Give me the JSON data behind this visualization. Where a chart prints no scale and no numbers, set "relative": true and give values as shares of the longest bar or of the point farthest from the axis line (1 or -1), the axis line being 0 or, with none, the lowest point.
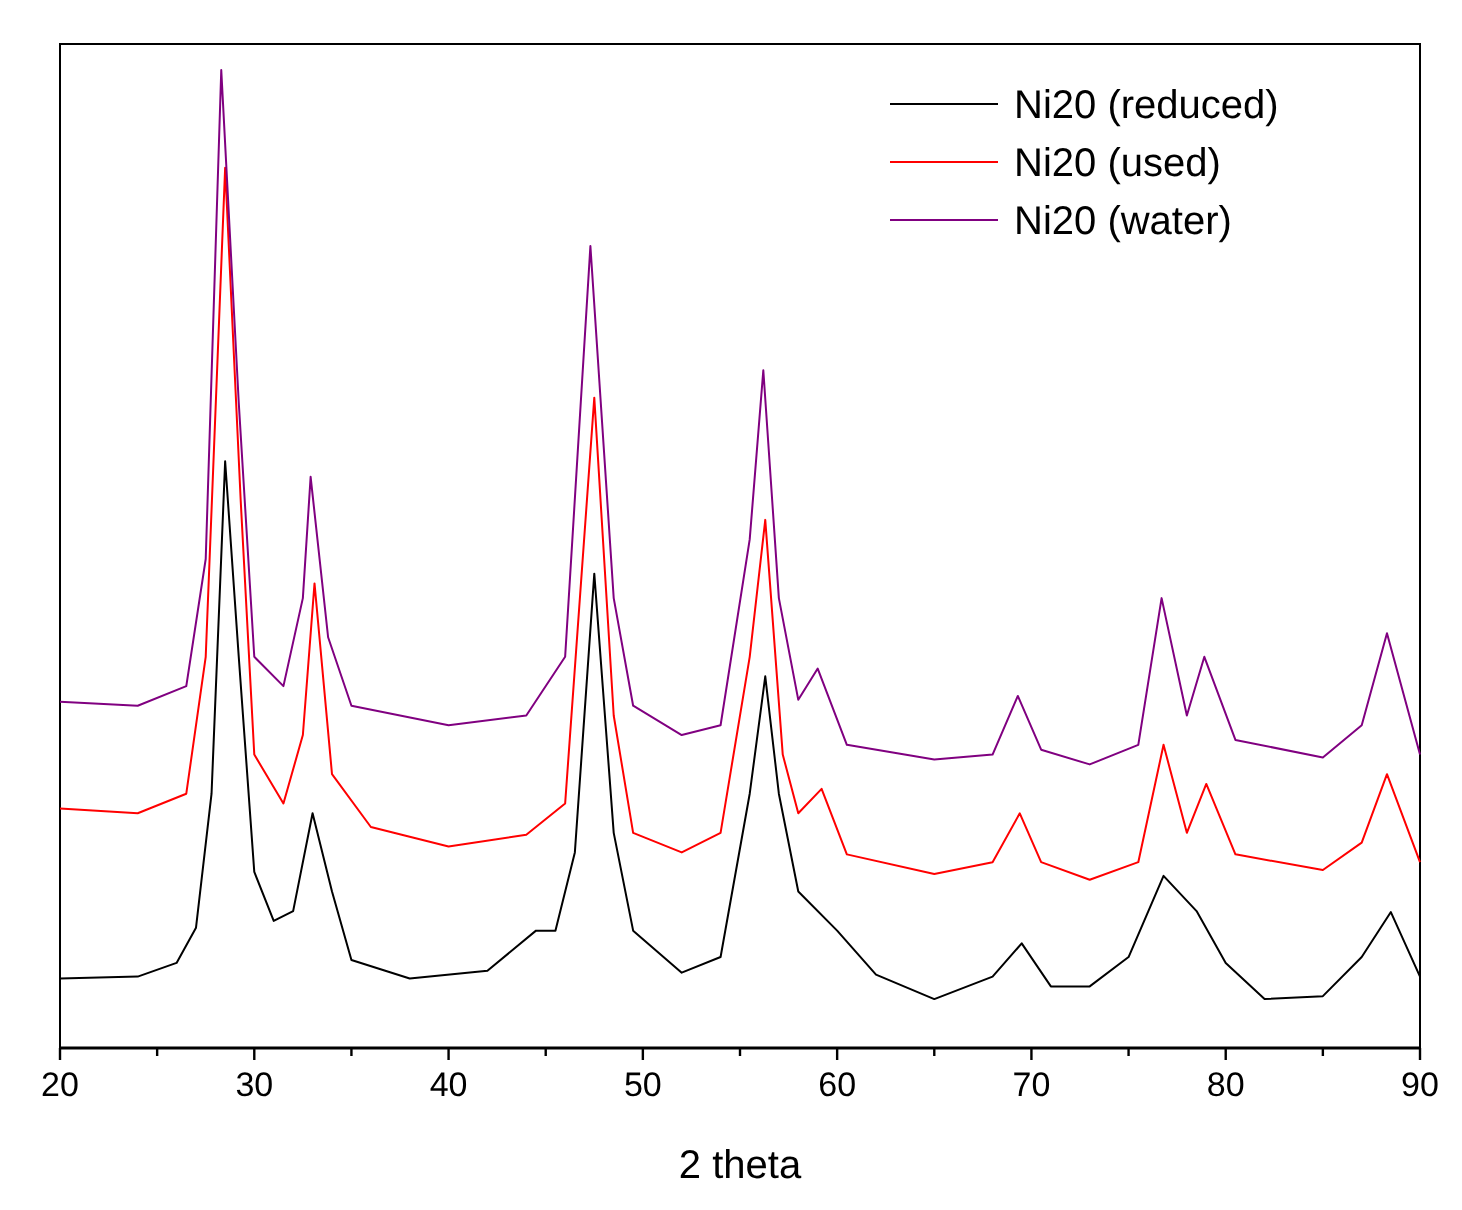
{
  "chart_data": {
    "type": "line",
    "xlabel": "2 theta",
    "relative": true,
    "xlim": [
      20,
      90
    ],
    "xticks": [
      20,
      {
        "value": 25,
        "label": null
      },
      30,
      {
        "value": 35,
        "label": null
      },
      40,
      {
        "value": 45,
        "label": null
      },
      50,
      {
        "value": 55,
        "label": null
      },
      60,
      {
        "value": 65,
        "label": null
      },
      70,
      {
        "value": 75,
        "label": null
      },
      80,
      {
        "value": 85,
        "label": null
      },
      90
    ],
    "legend": "top right",
    "grid": false,
    "line_style": "solid",
    "series": [
      {
        "name": "Ni20 (reduced)",
        "color": "#000000",
        "x": [
          20,
          24,
          26,
          27,
          27.8,
          28.5,
          29.2,
          30,
          31,
          32,
          33,
          34,
          35,
          38,
          42,
          44.5,
          45.5,
          46.5,
          47.5,
          48.5,
          49.5,
          52,
          54,
          55.5,
          56.3,
          57,
          58,
          60,
          62,
          65,
          68,
          69.5,
          71,
          73,
          75,
          76.8,
          78.5,
          80,
          82,
          85,
          87,
          88.5,
          90
        ],
        "values": [
          0.071,
          0.073,
          0.087,
          0.123,
          0.26,
          0.6,
          0.4,
          0.18,
          0.13,
          0.14,
          0.24,
          0.16,
          0.09,
          0.071,
          0.079,
          0.12,
          0.12,
          0.2,
          0.485,
          0.22,
          0.12,
          0.077,
          0.093,
          0.26,
          0.38,
          0.26,
          0.16,
          0.12,
          0.075,
          0.05,
          0.073,
          0.107,
          0.063,
          0.063,
          0.093,
          0.176,
          0.14,
          0.087,
          0.05,
          0.053,
          0.093,
          0.139,
          0.073
        ]
      },
      {
        "name": "Ni20 (used)",
        "color": "#ff0000",
        "x": [
          20,
          24,
          26.5,
          27.5,
          28.5,
          29.3,
          30,
          31.5,
          32.5,
          33.1,
          34,
          36,
          40,
          44,
          46,
          47.5,
          48.5,
          49.5,
          52,
          54,
          55.5,
          56.3,
          57.2,
          58,
          59.2,
          60.5,
          65,
          68,
          69.4,
          70.5,
          73,
          75.5,
          76.8,
          78,
          79,
          80.5,
          85,
          87,
          88.3,
          90
        ],
        "values": [
          0.245,
          0.24,
          0.26,
          0.4,
          0.9,
          0.56,
          0.3,
          0.25,
          0.32,
          0.475,
          0.28,
          0.226,
          0.206,
          0.218,
          0.25,
          0.665,
          0.34,
          0.22,
          0.2,
          0.22,
          0.4,
          0.54,
          0.3,
          0.24,
          0.265,
          0.198,
          0.178,
          0.19,
          0.24,
          0.19,
          0.172,
          0.19,
          0.31,
          0.22,
          0.27,
          0.198,
          0.182,
          0.21,
          0.28,
          0.19
        ]
      },
      {
        "name": "Ni20 (water)",
        "color": "#800080",
        "x": [
          20,
          24,
          26.5,
          27.5,
          28.3,
          29.2,
          30,
          31.5,
          32.5,
          32.9,
          33.8,
          35,
          40,
          44,
          46,
          47.3,
          48.5,
          49.5,
          52,
          54,
          55.5,
          56.2,
          57,
          58,
          59,
          60.5,
          65,
          68,
          69.3,
          70.5,
          73,
          75.5,
          76.7,
          78,
          78.9,
          80.5,
          85,
          87,
          88.3,
          90
        ],
        "values": [
          0.354,
          0.35,
          0.37,
          0.5,
          1,
          0.66,
          0.4,
          0.37,
          0.46,
          0.584,
          0.42,
          0.35,
          0.33,
          0.34,
          0.4,
          0.82,
          0.46,
          0.35,
          0.32,
          0.33,
          0.52,
          0.693,
          0.46,
          0.356,
          0.388,
          0.31,
          0.295,
          0.3,
          0.36,
          0.305,
          0.29,
          0.31,
          0.46,
          0.34,
          0.4,
          0.315,
          0.297,
          0.33,
          0.424,
          0.3
        ]
      }
    ]
  }
}
